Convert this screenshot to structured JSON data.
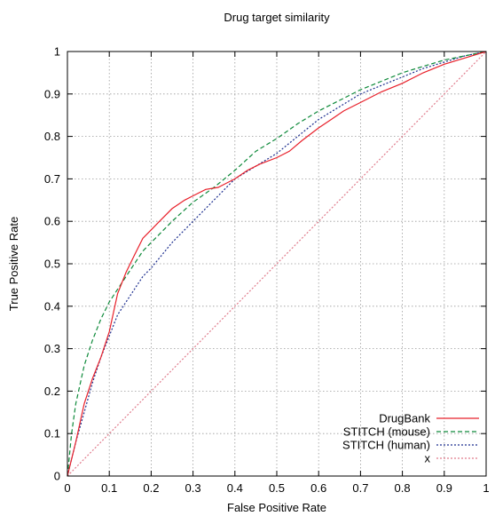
{
  "chart_data": {
    "type": "line",
    "title": "Drug target similarity",
    "xlabel": "False Positive Rate",
    "ylabel": "True Positive Rate",
    "xlim": [
      0,
      1
    ],
    "ylim": [
      0,
      1
    ],
    "xticks": [
      "0",
      "0.1",
      "0.2",
      "0.3",
      "0.4",
      "0.5",
      "0.6",
      "0.7",
      "0.8",
      "0.9",
      "1"
    ],
    "yticks": [
      "0",
      "0.1",
      "0.2",
      "0.3",
      "0.4",
      "0.5",
      "0.6",
      "0.7",
      "0.8",
      "0.9",
      "1"
    ],
    "grid": true,
    "legend_position": "bottom-right",
    "series": [
      {
        "name": "DrugBank",
        "color": "#e8202a",
        "dash": "solid",
        "x": [
          0,
          0.02,
          0.04,
          0.06,
          0.08,
          0.1,
          0.12,
          0.14,
          0.16,
          0.18,
          0.2,
          0.22,
          0.25,
          0.28,
          0.3,
          0.33,
          0.36,
          0.4,
          0.43,
          0.46,
          0.5,
          0.53,
          0.56,
          0.6,
          0.63,
          0.66,
          0.7,
          0.75,
          0.8,
          0.85,
          0.9,
          0.95,
          1.0
        ],
        "y": [
          0,
          0.08,
          0.17,
          0.23,
          0.28,
          0.34,
          0.43,
          0.48,
          0.52,
          0.56,
          0.58,
          0.6,
          0.63,
          0.65,
          0.66,
          0.675,
          0.68,
          0.7,
          0.72,
          0.735,
          0.75,
          0.765,
          0.79,
          0.82,
          0.84,
          0.86,
          0.88,
          0.905,
          0.925,
          0.95,
          0.97,
          0.985,
          1.0
        ]
      },
      {
        "name": "STITCH (mouse)",
        "color": "#0e8a3a",
        "dash": "dashed",
        "x": [
          0,
          0.01,
          0.02,
          0.04,
          0.06,
          0.08,
          0.1,
          0.12,
          0.14,
          0.16,
          0.18,
          0.2,
          0.25,
          0.3,
          0.35,
          0.4,
          0.45,
          0.5,
          0.55,
          0.6,
          0.65,
          0.7,
          0.75,
          0.8,
          0.85,
          0.9,
          0.95,
          1.0
        ],
        "y": [
          0,
          0.1,
          0.17,
          0.26,
          0.32,
          0.37,
          0.41,
          0.44,
          0.47,
          0.5,
          0.53,
          0.55,
          0.6,
          0.645,
          0.68,
          0.72,
          0.765,
          0.795,
          0.83,
          0.86,
          0.885,
          0.91,
          0.93,
          0.95,
          0.965,
          0.98,
          0.99,
          1.0
        ]
      },
      {
        "name": "STITCH (human)",
        "color": "#1c2e8f",
        "dash": "dotted",
        "x": [
          0,
          0.02,
          0.04,
          0.06,
          0.08,
          0.1,
          0.12,
          0.14,
          0.16,
          0.18,
          0.2,
          0.25,
          0.3,
          0.35,
          0.4,
          0.45,
          0.5,
          0.55,
          0.6,
          0.65,
          0.7,
          0.75,
          0.8,
          0.85,
          0.9,
          0.95,
          1.0
        ],
        "y": [
          0,
          0.08,
          0.15,
          0.22,
          0.28,
          0.33,
          0.38,
          0.41,
          0.44,
          0.47,
          0.49,
          0.55,
          0.6,
          0.65,
          0.7,
          0.73,
          0.76,
          0.8,
          0.84,
          0.87,
          0.9,
          0.92,
          0.94,
          0.96,
          0.975,
          0.99,
          1.0
        ]
      },
      {
        "name": "x",
        "color": "#e07c8c",
        "dash": "dotted",
        "x": [
          0,
          1
        ],
        "y": [
          0,
          1
        ]
      }
    ]
  }
}
